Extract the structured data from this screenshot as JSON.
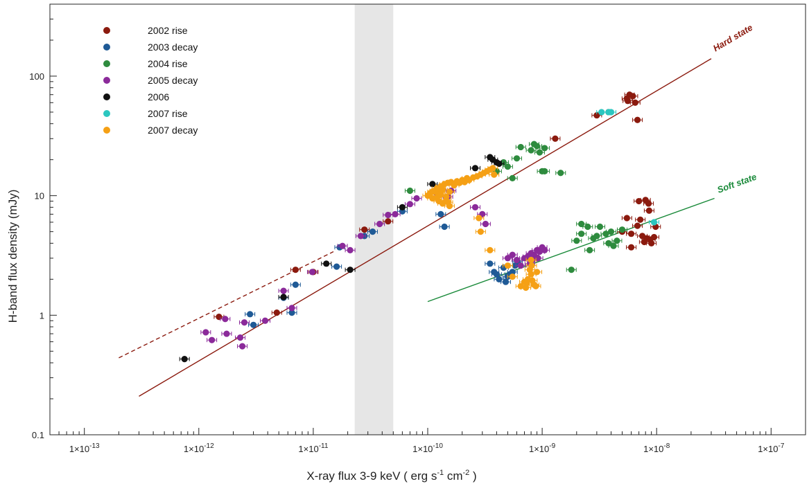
{
  "chart_data": {
    "type": "scatter",
    "title": "",
    "xlabel": "X-ray flux 3-9 keV ( erg s",
    "xlabel_exp1": "-1",
    "xlabel_mid": " cm",
    "xlabel_exp2": "-2",
    "xlabel_end": " )",
    "ylabel": "H-band flux density (mJy)",
    "xscale": "log",
    "yscale": "log",
    "xlim": [
      5e-14,
      2e-07
    ],
    "ylim": [
      0.1,
      400
    ],
    "grid": false,
    "legend_position": "top-left",
    "x_ticks": [
      {
        "value": 1e-13,
        "mant": "1×10",
        "exp": "-13"
      },
      {
        "value": 1e-12,
        "mant": "1×10",
        "exp": "-12"
      },
      {
        "value": 1e-11,
        "mant": "1×10",
        "exp": "-11"
      },
      {
        "value": 1e-10,
        "mant": "1×10",
        "exp": "-10"
      },
      {
        "value": 1e-09,
        "mant": "1×10",
        "exp": "-9"
      },
      {
        "value": 1e-08,
        "mant": "1×10",
        "exp": "-8"
      },
      {
        "value": 1e-07,
        "mant": "1×10",
        "exp": "-7"
      }
    ],
    "y_ticks": [
      {
        "value": 0.1,
        "label": "0.1"
      },
      {
        "value": 1,
        "label": "1"
      },
      {
        "value": 10,
        "label": "10"
      },
      {
        "value": 100,
        "label": "100"
      }
    ],
    "shaded_band": {
      "x_from": 2.3e-11,
      "x_to": 5e-11,
      "color": "#e6e6e6"
    },
    "fits": [
      {
        "label": "Hard state",
        "color": "#8b1a0e",
        "x_from": 3e-13,
        "x_to": 3e-08,
        "y_from": 0.21,
        "y_to": 140,
        "label_x": 3e-08,
        "label_y": 160
      },
      {
        "label": "",
        "color": "#8b1a0e",
        "dashed": true,
        "x_from": 2e-13,
        "x_to": 1.5e-11,
        "y_from": 0.44,
        "y_to": 3.4
      },
      {
        "label": "Soft state",
        "color": "#1a8a3a",
        "x_from": 1e-10,
        "x_to": 3.2e-08,
        "y_from": 1.3,
        "y_to": 9.5,
        "label_x": 3.2e-08,
        "label_y": 10.5
      }
    ],
    "series": [
      {
        "name": "2002 rise",
        "color": "#8b1a0e",
        "points": [
          [
            1.5e-12,
            0.97
          ],
          [
            7e-12,
            2.4
          ],
          [
            4.8e-12,
            1.05
          ],
          [
            1e-11,
            2.3
          ],
          [
            2.8e-11,
            5.2
          ],
          [
            4.5e-11,
            6.1
          ],
          [
            1.3e-09,
            30
          ],
          [
            3e-09,
            47
          ],
          [
            3.8e-09,
            50
          ],
          [
            5.5e-09,
            65
          ],
          [
            5.8e-09,
            70
          ],
          [
            6.2e-09,
            68
          ],
          [
            5.6e-09,
            62
          ],
          [
            6.5e-09,
            60
          ],
          [
            6.8e-09,
            43
          ],
          [
            5e-09,
            5.0
          ],
          [
            5.5e-09,
            6.5
          ],
          [
            6e-09,
            4.8
          ],
          [
            6.8e-09,
            5.6
          ],
          [
            7.2e-09,
            6.3
          ],
          [
            7e-09,
            9.0
          ],
          [
            8e-09,
            9.2
          ],
          [
            8.5e-09,
            8.6
          ],
          [
            8.8e-09,
            4.3
          ],
          [
            9e-09,
            4.0
          ],
          [
            9.5e-09,
            4.5
          ],
          [
            8.2e-09,
            4.4
          ],
          [
            7.8e-09,
            4.1
          ],
          [
            9.8e-09,
            5.5
          ],
          [
            6e-09,
            3.7
          ],
          [
            8.6e-09,
            7.5
          ],
          [
            7.5e-09,
            4.6
          ]
        ]
      },
      {
        "name": "2003 decay",
        "color": "#1f5a96",
        "points": [
          [
            5.5e-12,
            1.4
          ],
          [
            6.5e-12,
            1.05
          ],
          [
            2.8e-12,
            1.02
          ],
          [
            3e-12,
            0.83
          ],
          [
            7e-12,
            1.8
          ],
          [
            1.6e-11,
            2.55
          ],
          [
            1.7e-11,
            3.7
          ],
          [
            2.8e-11,
            4.6
          ],
          [
            3.3e-11,
            5.0
          ],
          [
            6e-11,
            7.4
          ],
          [
            1.3e-10,
            7.0
          ],
          [
            1.4e-10,
            5.5
          ],
          [
            3.5e-10,
            2.7
          ],
          [
            3.8e-10,
            2.3
          ],
          [
            4.2e-10,
            2.0
          ],
          [
            4.6e-10,
            2.5
          ],
          [
            4.8e-10,
            1.9
          ],
          [
            5.2e-10,
            2.2
          ],
          [
            5.5e-10,
            2.3
          ],
          [
            5.8e-10,
            2.6
          ],
          [
            6.1e-10,
            2.8
          ],
          [
            4e-10,
            2.2
          ],
          [
            5e-10,
            2.1
          ]
        ]
      },
      {
        "name": "2004 rise",
        "color": "#2e8b3e",
        "points": [
          [
            7e-11,
            11
          ],
          [
            4e-10,
            16
          ],
          [
            4.6e-10,
            19
          ],
          [
            5e-10,
            17.5
          ],
          [
            5.5e-10,
            14
          ],
          [
            6e-10,
            20.5
          ],
          [
            6.5e-10,
            25.5
          ],
          [
            8e-10,
            24
          ],
          [
            8.5e-10,
            27
          ],
          [
            9e-10,
            26
          ],
          [
            9.5e-10,
            23
          ],
          [
            1.05e-09,
            25
          ],
          [
            1e-09,
            16
          ],
          [
            1.05e-09,
            16
          ],
          [
            1.45e-09,
            15.5
          ],
          [
            1.8e-09,
            2.4
          ],
          [
            2e-09,
            4.2
          ],
          [
            2.2e-09,
            4.8
          ],
          [
            2.5e-09,
            5.5
          ],
          [
            2.2e-09,
            5.8
          ],
          [
            2.6e-09,
            3.5
          ],
          [
            3e-09,
            4.6
          ],
          [
            3.2e-09,
            5.5
          ],
          [
            3.6e-09,
            4.8
          ],
          [
            4e-09,
            5.0
          ],
          [
            4.5e-09,
            4.2
          ],
          [
            5e-09,
            5.2
          ],
          [
            3.8e-09,
            4.0
          ],
          [
            2.8e-09,
            4.4
          ],
          [
            4.2e-09,
            3.8
          ]
        ]
      },
      {
        "name": "2005 decay",
        "color": "#8b2a9a",
        "points": [
          [
            1.15e-12,
            0.72
          ],
          [
            1.3e-12,
            0.62
          ],
          [
            1.7e-12,
            0.93
          ],
          [
            1.75e-12,
            0.7
          ],
          [
            2.3e-12,
            0.65
          ],
          [
            2.5e-12,
            0.87
          ],
          [
            2.4e-12,
            0.55
          ],
          [
            3.8e-12,
            0.9
          ],
          [
            5.5e-12,
            1.6
          ],
          [
            6.5e-12,
            1.15
          ],
          [
            9.8e-12,
            2.3
          ],
          [
            1.8e-11,
            3.8
          ],
          [
            2.1e-11,
            3.5
          ],
          [
            2.6e-11,
            4.6
          ],
          [
            3.8e-11,
            5.8
          ],
          [
            4.5e-11,
            6.9
          ],
          [
            5.2e-11,
            7.0
          ],
          [
            7e-11,
            8.5
          ],
          [
            8e-11,
            9.5
          ],
          [
            1.2e-10,
            10.5
          ],
          [
            1.5e-10,
            9.8
          ],
          [
            1.6e-10,
            11
          ],
          [
            2.6e-10,
            8.0
          ],
          [
            3e-10,
            7.0
          ],
          [
            3.2e-10,
            5.8
          ],
          [
            5e-10,
            3.0
          ],
          [
            5.5e-10,
            3.2
          ],
          [
            6e-10,
            2.9
          ],
          [
            7e-10,
            3.0
          ],
          [
            7.5e-10,
            3.1
          ],
          [
            8e-10,
            3.3
          ],
          [
            8.5e-10,
            3.2
          ],
          [
            9e-10,
            3.5
          ],
          [
            9.5e-10,
            3.4
          ],
          [
            1e-09,
            3.7
          ],
          [
            1.05e-09,
            3.5
          ],
          [
            7.8e-10,
            2.7
          ],
          [
            8.2e-10,
            2.9
          ],
          [
            6.5e-10,
            2.6
          ],
          [
            9.2e-10,
            3.0
          ]
        ]
      },
      {
        "name": "2006",
        "color": "#111111",
        "points": [
          [
            7.5e-13,
            0.43
          ],
          [
            5.5e-12,
            1.42
          ],
          [
            1.3e-11,
            2.7
          ],
          [
            2.1e-11,
            2.4
          ],
          [
            6e-11,
            8.0
          ],
          [
            1.1e-10,
            12.5
          ],
          [
            2.6e-10,
            17
          ],
          [
            3.5e-10,
            21
          ],
          [
            3.7e-10,
            20
          ],
          [
            4e-10,
            19
          ],
          [
            4.2e-10,
            18.5
          ]
        ]
      },
      {
        "name": "2007 rise",
        "color": "#2cc7c0",
        "points": [
          [
            3.3e-09,
            50
          ],
          [
            3.8e-09,
            50
          ],
          [
            4e-09,
            50
          ],
          [
            9.5e-09,
            6.0
          ]
        ]
      },
      {
        "name": "2007 decay",
        "color": "#f5a015",
        "points": [
          [
            1e-10,
            10
          ],
          [
            1.05e-10,
            10.5
          ],
          [
            1.1e-10,
            9.5
          ],
          [
            1.15e-10,
            11
          ],
          [
            1.2e-10,
            11.5
          ],
          [
            1.25e-10,
            10.3
          ],
          [
            1.3e-10,
            12
          ],
          [
            1.35e-10,
            11.2
          ],
          [
            1.4e-10,
            12.5
          ],
          [
            1.45e-10,
            9.8
          ],
          [
            1.5e-10,
            12.8
          ],
          [
            1.55e-10,
            10.8
          ],
          [
            1.6e-10,
            13
          ],
          [
            1.7e-10,
            12.2
          ],
          [
            1.8e-10,
            13.2
          ],
          [
            1.9e-10,
            12.8
          ],
          [
            2e-10,
            13.5
          ],
          [
            2.1e-10,
            13
          ],
          [
            2.2e-10,
            14
          ],
          [
            2.3e-10,
            13.5
          ],
          [
            2.5e-10,
            14.2
          ],
          [
            2.7e-10,
            14.5
          ],
          [
            2.9e-10,
            15
          ],
          [
            3.1e-10,
            15.5
          ],
          [
            3.3e-10,
            16
          ],
          [
            3.5e-10,
            16.5
          ],
          [
            3.7e-10,
            17
          ],
          [
            3.8e-10,
            15
          ],
          [
            1.25e-10,
            9.0
          ],
          [
            1.35e-10,
            8.6
          ],
          [
            1.45e-10,
            9.2
          ],
          [
            1.55e-10,
            8.2
          ],
          [
            1.1e-10,
            10.8
          ],
          [
            1.2e-10,
            9.6
          ],
          [
            1.3e-10,
            10.2
          ],
          [
            1.5e-10,
            8.8
          ],
          [
            1.3e-10,
            11.8
          ],
          [
            2.8e-10,
            6.5
          ],
          [
            2.9e-10,
            5.0
          ],
          [
            3.5e-10,
            3.5
          ],
          [
            5e-10,
            2.6
          ],
          [
            5.5e-10,
            2.1
          ],
          [
            6.5e-10,
            1.75
          ],
          [
            7e-10,
            1.9
          ],
          [
            7.3e-10,
            1.85
          ],
          [
            7.5e-10,
            2.0
          ],
          [
            7.8e-10,
            2.4
          ],
          [
            8e-10,
            2.2
          ],
          [
            8.2e-10,
            1.95
          ],
          [
            8.5e-10,
            1.8
          ],
          [
            8.8e-10,
            1.75
          ],
          [
            9e-10,
            2.3
          ],
          [
            8.1e-10,
            2.6
          ],
          [
            8e-10,
            2.9
          ],
          [
            7.2e-10,
            1.7
          ]
        ]
      }
    ]
  }
}
